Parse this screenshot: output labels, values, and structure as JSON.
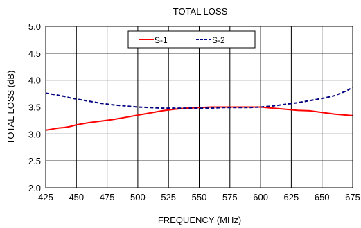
{
  "chart_data": {
    "type": "line",
    "title": "TOTAL LOSS",
    "xlabel": "FREQUENCY (MHz)",
    "ylabel": "TOTAL LOSS (dB)",
    "xlim": [
      425,
      675
    ],
    "ylim": [
      2.0,
      5.0
    ],
    "x_ticks": [
      425,
      450,
      475,
      500,
      525,
      550,
      575,
      600,
      625,
      650,
      675
    ],
    "x_tick_labels": [
      "425",
      "450",
      "475",
      "500",
      "525",
      "550",
      "575",
      "600",
      "625",
      "650",
      "675"
    ],
    "y_ticks": [
      2.0,
      2.5,
      3.0,
      3.5,
      4.0,
      4.5,
      5.0
    ],
    "y_tick_labels": [
      "2.0",
      "2.5",
      "3.0",
      "3.5",
      "4.0",
      "4.5",
      "5.0"
    ],
    "grid": true,
    "legend_position": "top-center",
    "x": [
      425,
      430,
      435,
      440,
      445,
      450,
      460,
      470,
      480,
      490,
      500,
      510,
      520,
      530,
      540,
      550,
      560,
      570,
      580,
      590,
      600,
      610,
      620,
      630,
      640,
      650,
      660,
      670,
      675
    ],
    "series": [
      {
        "name": "S-1",
        "color": "#ff0000",
        "style": "solid",
        "values": [
          3.07,
          3.09,
          3.11,
          3.12,
          3.14,
          3.17,
          3.21,
          3.24,
          3.27,
          3.31,
          3.35,
          3.39,
          3.43,
          3.46,
          3.48,
          3.49,
          3.5,
          3.5,
          3.5,
          3.5,
          3.5,
          3.48,
          3.46,
          3.44,
          3.43,
          3.4,
          3.37,
          3.35,
          3.34
        ]
      },
      {
        "name": "S-2",
        "color": "#000080",
        "style": "dashed",
        "values": [
          3.76,
          3.74,
          3.72,
          3.7,
          3.67,
          3.65,
          3.61,
          3.57,
          3.54,
          3.52,
          3.5,
          3.49,
          3.48,
          3.48,
          3.48,
          3.48,
          3.48,
          3.49,
          3.49,
          3.49,
          3.5,
          3.52,
          3.55,
          3.58,
          3.62,
          3.66,
          3.71,
          3.8,
          3.87
        ]
      }
    ]
  }
}
